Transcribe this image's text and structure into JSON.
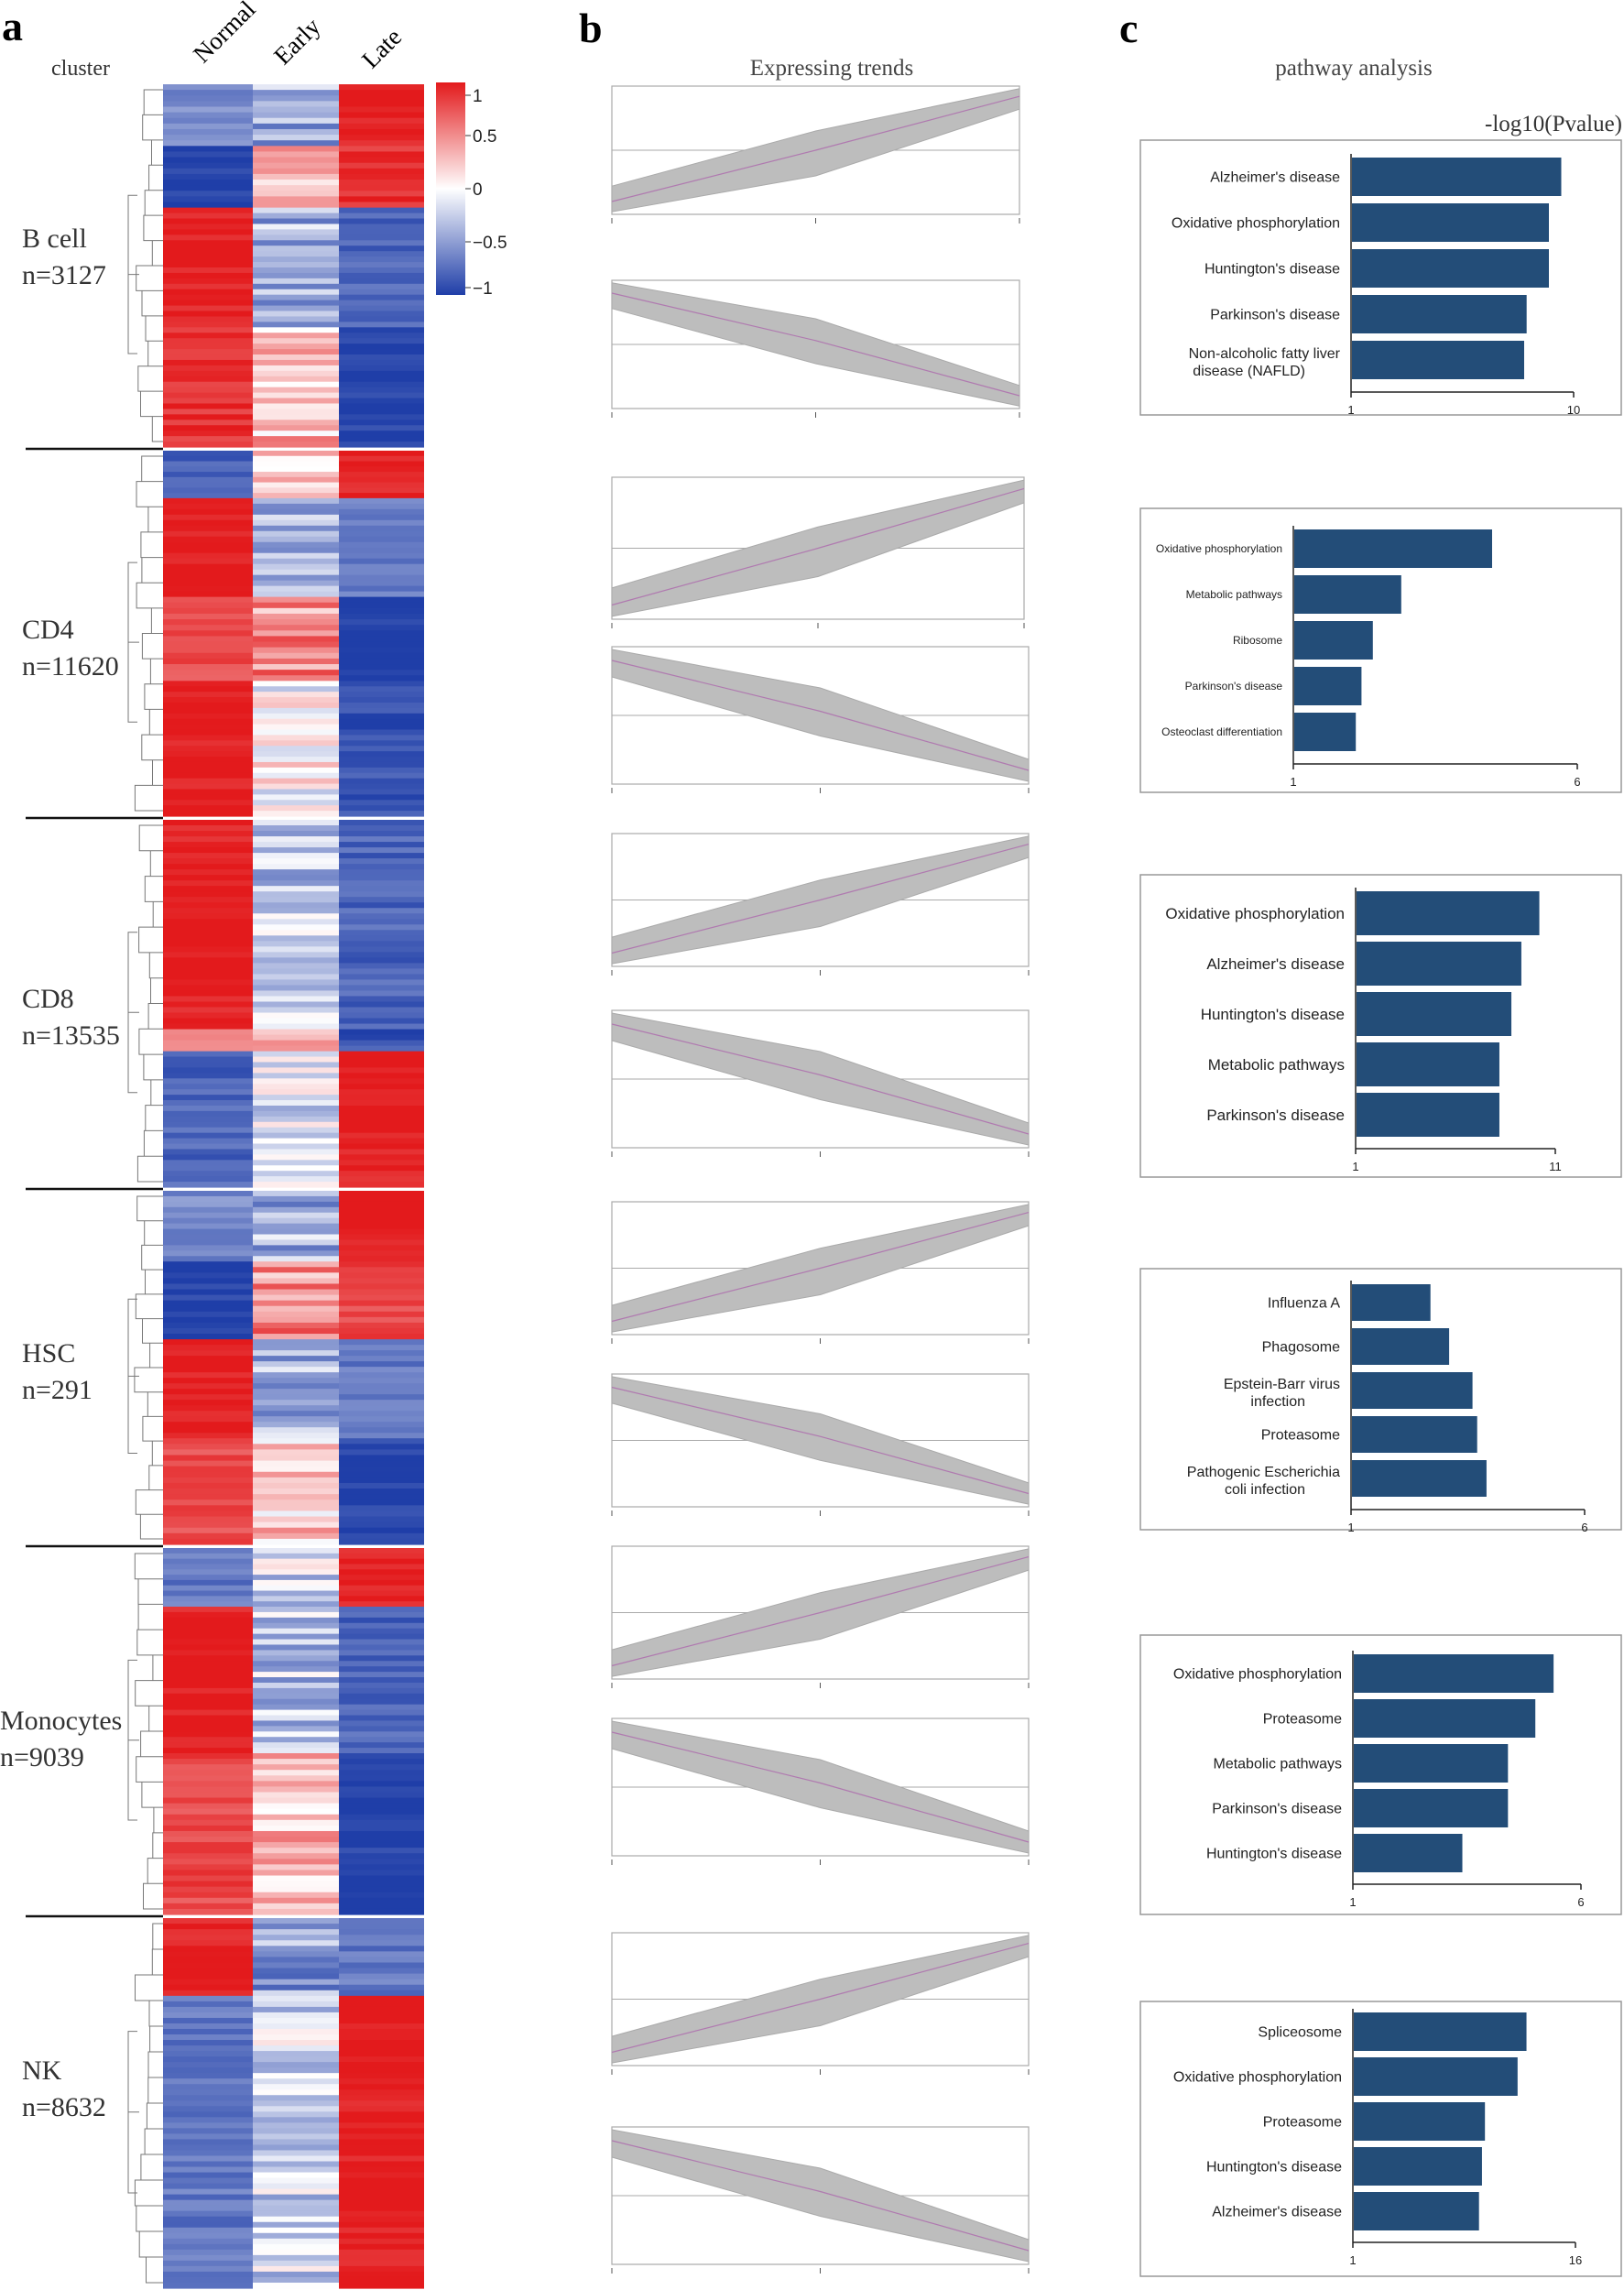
{
  "panel_labels": {
    "a": "a",
    "b": "b",
    "c": "c"
  },
  "heatmap": {
    "cluster_header": "cluster",
    "columns": [
      "Normal",
      "Early",
      "Late"
    ],
    "colorbar": {
      "ticks": [
        {
          "value": 1,
          "label": "1"
        },
        {
          "value": 0.5,
          "label": "0.5"
        },
        {
          "value": 0,
          "label": "0"
        },
        {
          "value": -0.5,
          "label": "−0.5"
        },
        {
          "value": -1,
          "label": "−1"
        }
      ],
      "colors": {
        "high": "#e31a1c",
        "mid": "#ffffff",
        "low": "#1f3ea8"
      }
    },
    "clusters": [
      {
        "name": "B cell",
        "count_label": "n=3127"
      },
      {
        "name": "CD4",
        "count_label": "n=11620"
      },
      {
        "name": "CD8",
        "count_label": "n=13535"
      },
      {
        "name": "HSC",
        "count_label": "n=291"
      },
      {
        "name": "Monocytes",
        "count_label": "n=9039"
      },
      {
        "name": "NK",
        "count_label": "n=8632"
      }
    ]
  },
  "trends": {
    "title": "Expressing trends",
    "patterns": [
      "up",
      "down",
      "up",
      "down",
      "up",
      "down",
      "up",
      "down",
      "up",
      "down",
      "up",
      "down"
    ]
  },
  "pathway": {
    "title": "pathway analysis",
    "axis_label": "-log10(Pvalue)"
  },
  "chart_data": [
    {
      "type": "bar",
      "orientation": "horizontal",
      "cluster": "B cell",
      "categories": [
        "Alzheimer's disease",
        "Oxidative phosphorylation",
        "Huntington's disease",
        "Parkinson's disease",
        "Non-alcoholic fatty liver disease (NAFLD)"
      ],
      "values": [
        9.5,
        9.0,
        9.0,
        8.1,
        8.0
      ],
      "xlim": [
        1,
        10
      ],
      "xticks": [
        "1",
        "10"
      ]
    },
    {
      "type": "bar",
      "orientation": "horizontal",
      "cluster": "CD4",
      "categories": [
        "Oxidative phosphorylation",
        "Metabolic pathways",
        "Ribosome",
        "Parkinson's disease",
        "Osteoclast differentiation"
      ],
      "values": [
        4.5,
        2.9,
        2.4,
        2.2,
        2.1
      ],
      "xlim": [
        1,
        6
      ],
      "xticks": [
        "1",
        "6"
      ]
    },
    {
      "type": "bar",
      "orientation": "horizontal",
      "cluster": "CD8",
      "categories": [
        "Oxidative phosphorylation",
        "Alzheimer's disease",
        "Huntington's disease",
        "Metabolic pathways",
        "Parkinson's disease"
      ],
      "values": [
        10.2,
        9.3,
        8.8,
        8.2,
        8.2
      ],
      "xlim": [
        1,
        11
      ],
      "xticks": [
        "1",
        "11"
      ]
    },
    {
      "type": "bar",
      "orientation": "horizontal",
      "cluster": "HSC",
      "categories": [
        "Influenza A",
        "Phagosome",
        "Epstein-Barr virus infection",
        "Proteasome",
        "Pathogenic Escherichia coli infection"
      ],
      "values": [
        2.7,
        3.1,
        3.6,
        3.7,
        3.9
      ],
      "xlim": [
        1,
        6
      ],
      "xticks": [
        "1",
        "6"
      ]
    },
    {
      "type": "bar",
      "orientation": "horizontal",
      "cluster": "Monocytes",
      "categories": [
        "Oxidative phosphorylation",
        "Proteasome",
        "Metabolic pathways",
        "Parkinson's disease",
        "Huntington's disease"
      ],
      "values": [
        5.4,
        5.0,
        4.4,
        4.4,
        3.4
      ],
      "xlim": [
        1,
        6
      ],
      "xticks": [
        "1",
        "6"
      ]
    },
    {
      "type": "bar",
      "orientation": "horizontal",
      "cluster": "NK",
      "categories": [
        "Spliceosome",
        "Oxidative phosphorylation",
        "Proteasome",
        "Huntington's disease",
        "Alzheimer's disease"
      ],
      "values": [
        12.7,
        12.1,
        9.9,
        9.7,
        9.5
      ],
      "xlim": [
        1,
        16
      ],
      "xticks": [
        "1",
        "16"
      ]
    }
  ]
}
